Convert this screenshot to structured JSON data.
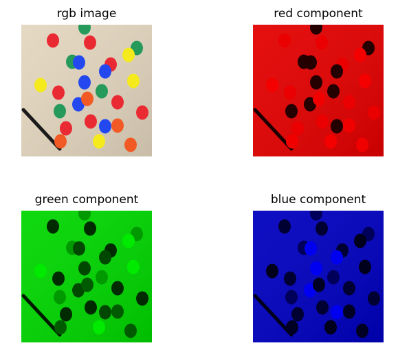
{
  "panels": [
    {
      "title": "rgb image",
      "channel": "rgb"
    },
    {
      "title": "red component",
      "channel": "red"
    },
    {
      "title": "green component",
      "channel": "green"
    },
    {
      "title": "blue component",
      "channel": "blue"
    }
  ],
  "background_color": "#e3d6bf",
  "dot_colors": {
    "red": "#ea2a33",
    "green": "#259a5a",
    "blue": "#2448f0",
    "yellow": "#f4ea1c",
    "orange": "#f15a24"
  },
  "marker_color": "#1a1a1a"
}
